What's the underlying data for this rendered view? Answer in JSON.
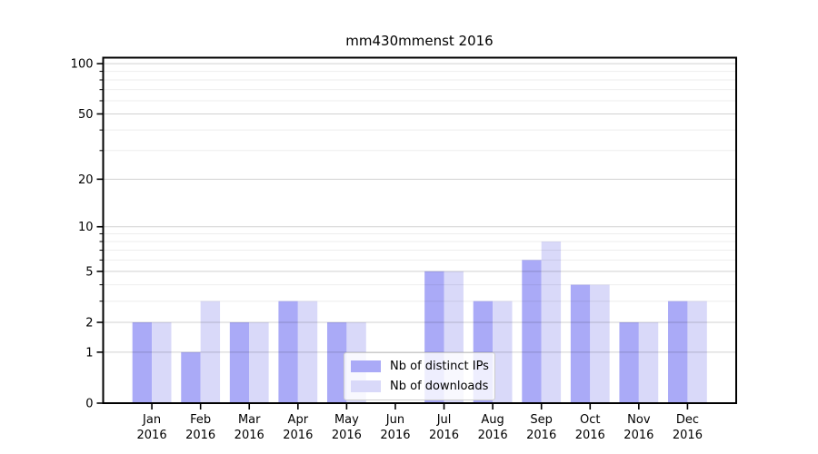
{
  "figure": {
    "background": "#ffffff",
    "axis_color": "#000000",
    "major_grid_color": "rgba(0,0,0,0.18)",
    "minor_grid_color": "rgba(0,0,0,0.07)"
  },
  "chart_data": {
    "type": "bar",
    "title": "mm430mmenst 2016",
    "xlabel": "",
    "ylabel": "",
    "categories": [
      "Jan",
      "Feb",
      "Mar",
      "Apr",
      "May",
      "Jun",
      "Jul",
      "Aug",
      "Sep",
      "Oct",
      "Nov",
      "Dec"
    ],
    "year_label": "2016",
    "series": [
      {
        "name": "Nb of distinct IPs",
        "color": "#aaaaf7",
        "values": [
          2,
          1,
          2,
          3,
          2,
          0,
          5,
          3,
          6,
          4,
          2,
          3
        ]
      },
      {
        "name": "Nb of downloads",
        "color": "#d9d9f9",
        "values": [
          2,
          3,
          2,
          3,
          2,
          0,
          5,
          3,
          8,
          4,
          2,
          3
        ]
      }
    ],
    "y_scale": "log10(1+x)",
    "y_max": 108.6,
    "y_major_ticks": [
      0,
      1,
      2,
      5,
      10,
      20,
      50,
      100
    ],
    "y_minor_ticks": [
      3,
      4,
      6,
      7,
      8,
      9,
      30,
      40,
      60,
      70,
      80,
      90
    ],
    "grid": "on",
    "legend_position": "lower center"
  }
}
